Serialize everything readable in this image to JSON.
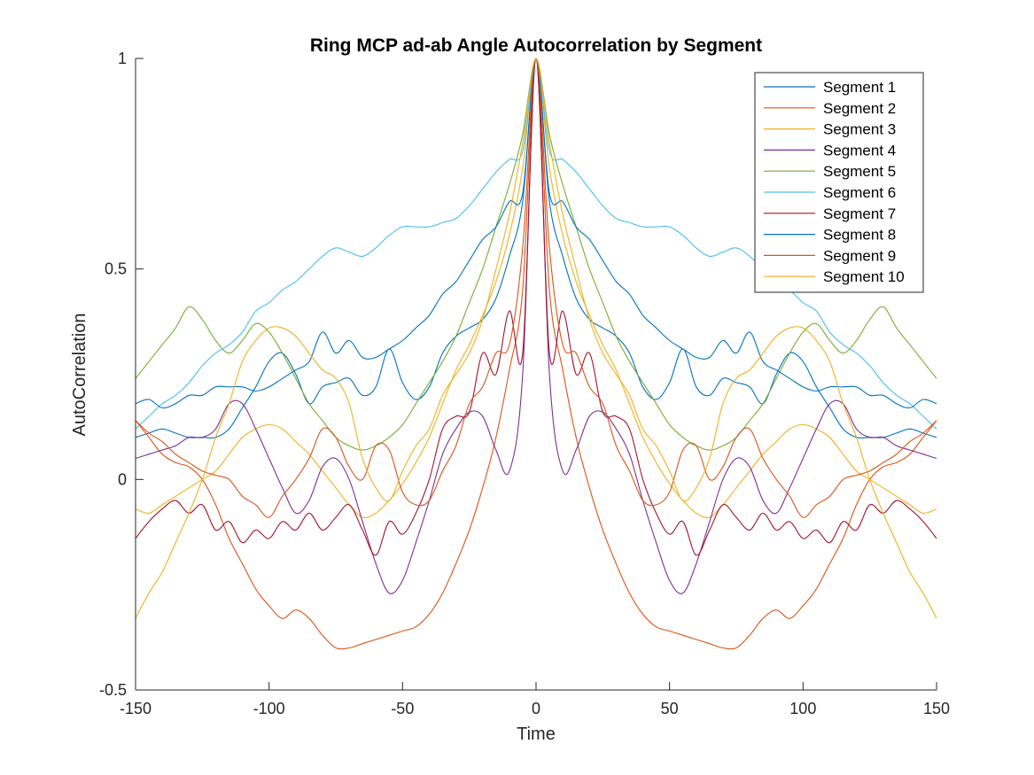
{
  "chart_data": {
    "type": "line",
    "title": "Ring MCP ad-ab Angle Autocorrelation by Segment",
    "xlabel": "Time",
    "ylabel": "AutoCorrelation",
    "xlim": [
      -150,
      150
    ],
    "ylim": [
      -0.5,
      1
    ],
    "xticks": [
      -150,
      -100,
      -50,
      0,
      50,
      100,
      150
    ],
    "yticks": [
      -0.5,
      0,
      0.5,
      1
    ],
    "legend_position": "top-right",
    "grid": false,
    "symmetric_about_zero": true,
    "x_half": [
      0,
      5,
      10,
      15,
      20,
      25,
      30,
      35,
      40,
      45,
      50,
      55,
      60,
      65,
      70,
      75,
      80,
      85,
      90,
      95,
      100,
      105,
      110,
      115,
      120,
      125,
      130,
      135,
      140,
      145,
      150
    ],
    "series": [
      {
        "name": "Segment 1",
        "color": "#0072BD",
        "values": [
          1.0,
          0.66,
          0.53,
          0.43,
          0.38,
          0.36,
          0.34,
          0.3,
          0.22,
          0.19,
          0.23,
          0.31,
          0.22,
          0.2,
          0.24,
          0.23,
          0.22,
          0.18,
          0.25,
          0.3,
          0.28,
          0.22,
          0.17,
          0.12,
          0.1,
          0.1,
          0.1,
          0.11,
          0.12,
          0.11,
          0.1
        ]
      },
      {
        "name": "Segment 2",
        "color": "#D95319",
        "values": [
          1.0,
          0.45,
          0.26,
          0.1,
          -0.02,
          -0.12,
          -0.2,
          -0.27,
          -0.32,
          -0.35,
          -0.36,
          -0.37,
          -0.38,
          -0.39,
          -0.4,
          -0.4,
          -0.37,
          -0.33,
          -0.31,
          -0.33,
          -0.3,
          -0.26,
          -0.2,
          -0.14,
          -0.06,
          0.0,
          0.03,
          0.04,
          0.06,
          0.1,
          0.14
        ]
      },
      {
        "name": "Segment 3",
        "color": "#EDB120",
        "values": [
          1.0,
          0.74,
          0.58,
          0.47,
          0.39,
          0.32,
          0.26,
          0.18,
          0.1,
          0.04,
          -0.01,
          -0.05,
          -0.08,
          -0.09,
          -0.06,
          -0.02,
          0.02,
          0.06,
          0.09,
          0.12,
          0.13,
          0.12,
          0.1,
          0.06,
          0.02,
          0.0,
          -0.02,
          -0.04,
          -0.06,
          -0.08,
          -0.07
        ]
      },
      {
        "name": "Segment 4",
        "color": "#7E2F8E",
        "values": [
          1.0,
          0.25,
          0.02,
          0.07,
          0.15,
          0.16,
          0.12,
          0.06,
          -0.05,
          -0.15,
          -0.24,
          -0.27,
          -0.2,
          -0.1,
          0.0,
          0.05,
          0.03,
          -0.05,
          -0.08,
          -0.02,
          0.05,
          0.12,
          0.18,
          0.18,
          0.12,
          0.1,
          0.1,
          0.08,
          0.07,
          0.06,
          0.05
        ]
      },
      {
        "name": "Segment 5",
        "color": "#77AC30",
        "values": [
          1.0,
          0.82,
          0.7,
          0.6,
          0.5,
          0.42,
          0.34,
          0.28,
          0.23,
          0.18,
          0.13,
          0.1,
          0.08,
          0.07,
          0.08,
          0.1,
          0.14,
          0.18,
          0.24,
          0.3,
          0.35,
          0.37,
          0.33,
          0.3,
          0.33,
          0.38,
          0.41,
          0.36,
          0.32,
          0.28,
          0.24
        ]
      },
      {
        "name": "Segment 6",
        "color": "#4DBEEE",
        "values": [
          1.0,
          0.78,
          0.76,
          0.73,
          0.69,
          0.65,
          0.62,
          0.61,
          0.6,
          0.6,
          0.6,
          0.58,
          0.55,
          0.53,
          0.54,
          0.55,
          0.53,
          0.5,
          0.47,
          0.45,
          0.42,
          0.4,
          0.35,
          0.32,
          0.3,
          0.27,
          0.23,
          0.2,
          0.18,
          0.15,
          0.12
        ]
      },
      {
        "name": "Segment 7",
        "color": "#A2142F",
        "values": [
          1.0,
          0.3,
          0.4,
          0.25,
          0.3,
          0.16,
          0.15,
          0.12,
          0.0,
          -0.08,
          -0.13,
          -0.1,
          -0.18,
          -0.12,
          -0.06,
          -0.09,
          -0.12,
          -0.08,
          -0.12,
          -0.1,
          -0.14,
          -0.12,
          -0.15,
          -0.1,
          -0.12,
          -0.06,
          -0.08,
          -0.05,
          -0.07,
          -0.1,
          -0.14
        ]
      },
      {
        "name": "Segment 8",
        "color": "#0072BD",
        "values": [
          1.0,
          0.68,
          0.66,
          0.6,
          0.57,
          0.52,
          0.47,
          0.44,
          0.39,
          0.36,
          0.33,
          0.31,
          0.29,
          0.29,
          0.33,
          0.3,
          0.35,
          0.28,
          0.26,
          0.24,
          0.22,
          0.21,
          0.22,
          0.22,
          0.22,
          0.2,
          0.2,
          0.18,
          0.17,
          0.19,
          0.18
        ]
      },
      {
        "name": "Segment 9",
        "color": "#D95319",
        "values": [
          1.0,
          0.55,
          0.32,
          0.3,
          0.22,
          0.18,
          0.08,
          0.02,
          -0.05,
          -0.06,
          -0.03,
          0.07,
          0.08,
          0.0,
          0.03,
          0.1,
          0.12,
          0.05,
          0.0,
          -0.04,
          -0.09,
          -0.06,
          -0.04,
          0.0,
          0.01,
          0.02,
          0.04,
          0.06,
          0.09,
          0.11,
          0.14
        ]
      },
      {
        "name": "Segment 10",
        "color": "#EDB120",
        "values": [
          1.0,
          0.8,
          0.63,
          0.5,
          0.38,
          0.3,
          0.25,
          0.2,
          0.12,
          0.08,
          0.02,
          -0.05,
          -0.02,
          0.05,
          0.18,
          0.24,
          0.26,
          0.3,
          0.34,
          0.36,
          0.36,
          0.33,
          0.28,
          0.18,
          0.1,
          0.0,
          -0.08,
          -0.15,
          -0.22,
          -0.27,
          -0.33
        ]
      }
    ]
  }
}
